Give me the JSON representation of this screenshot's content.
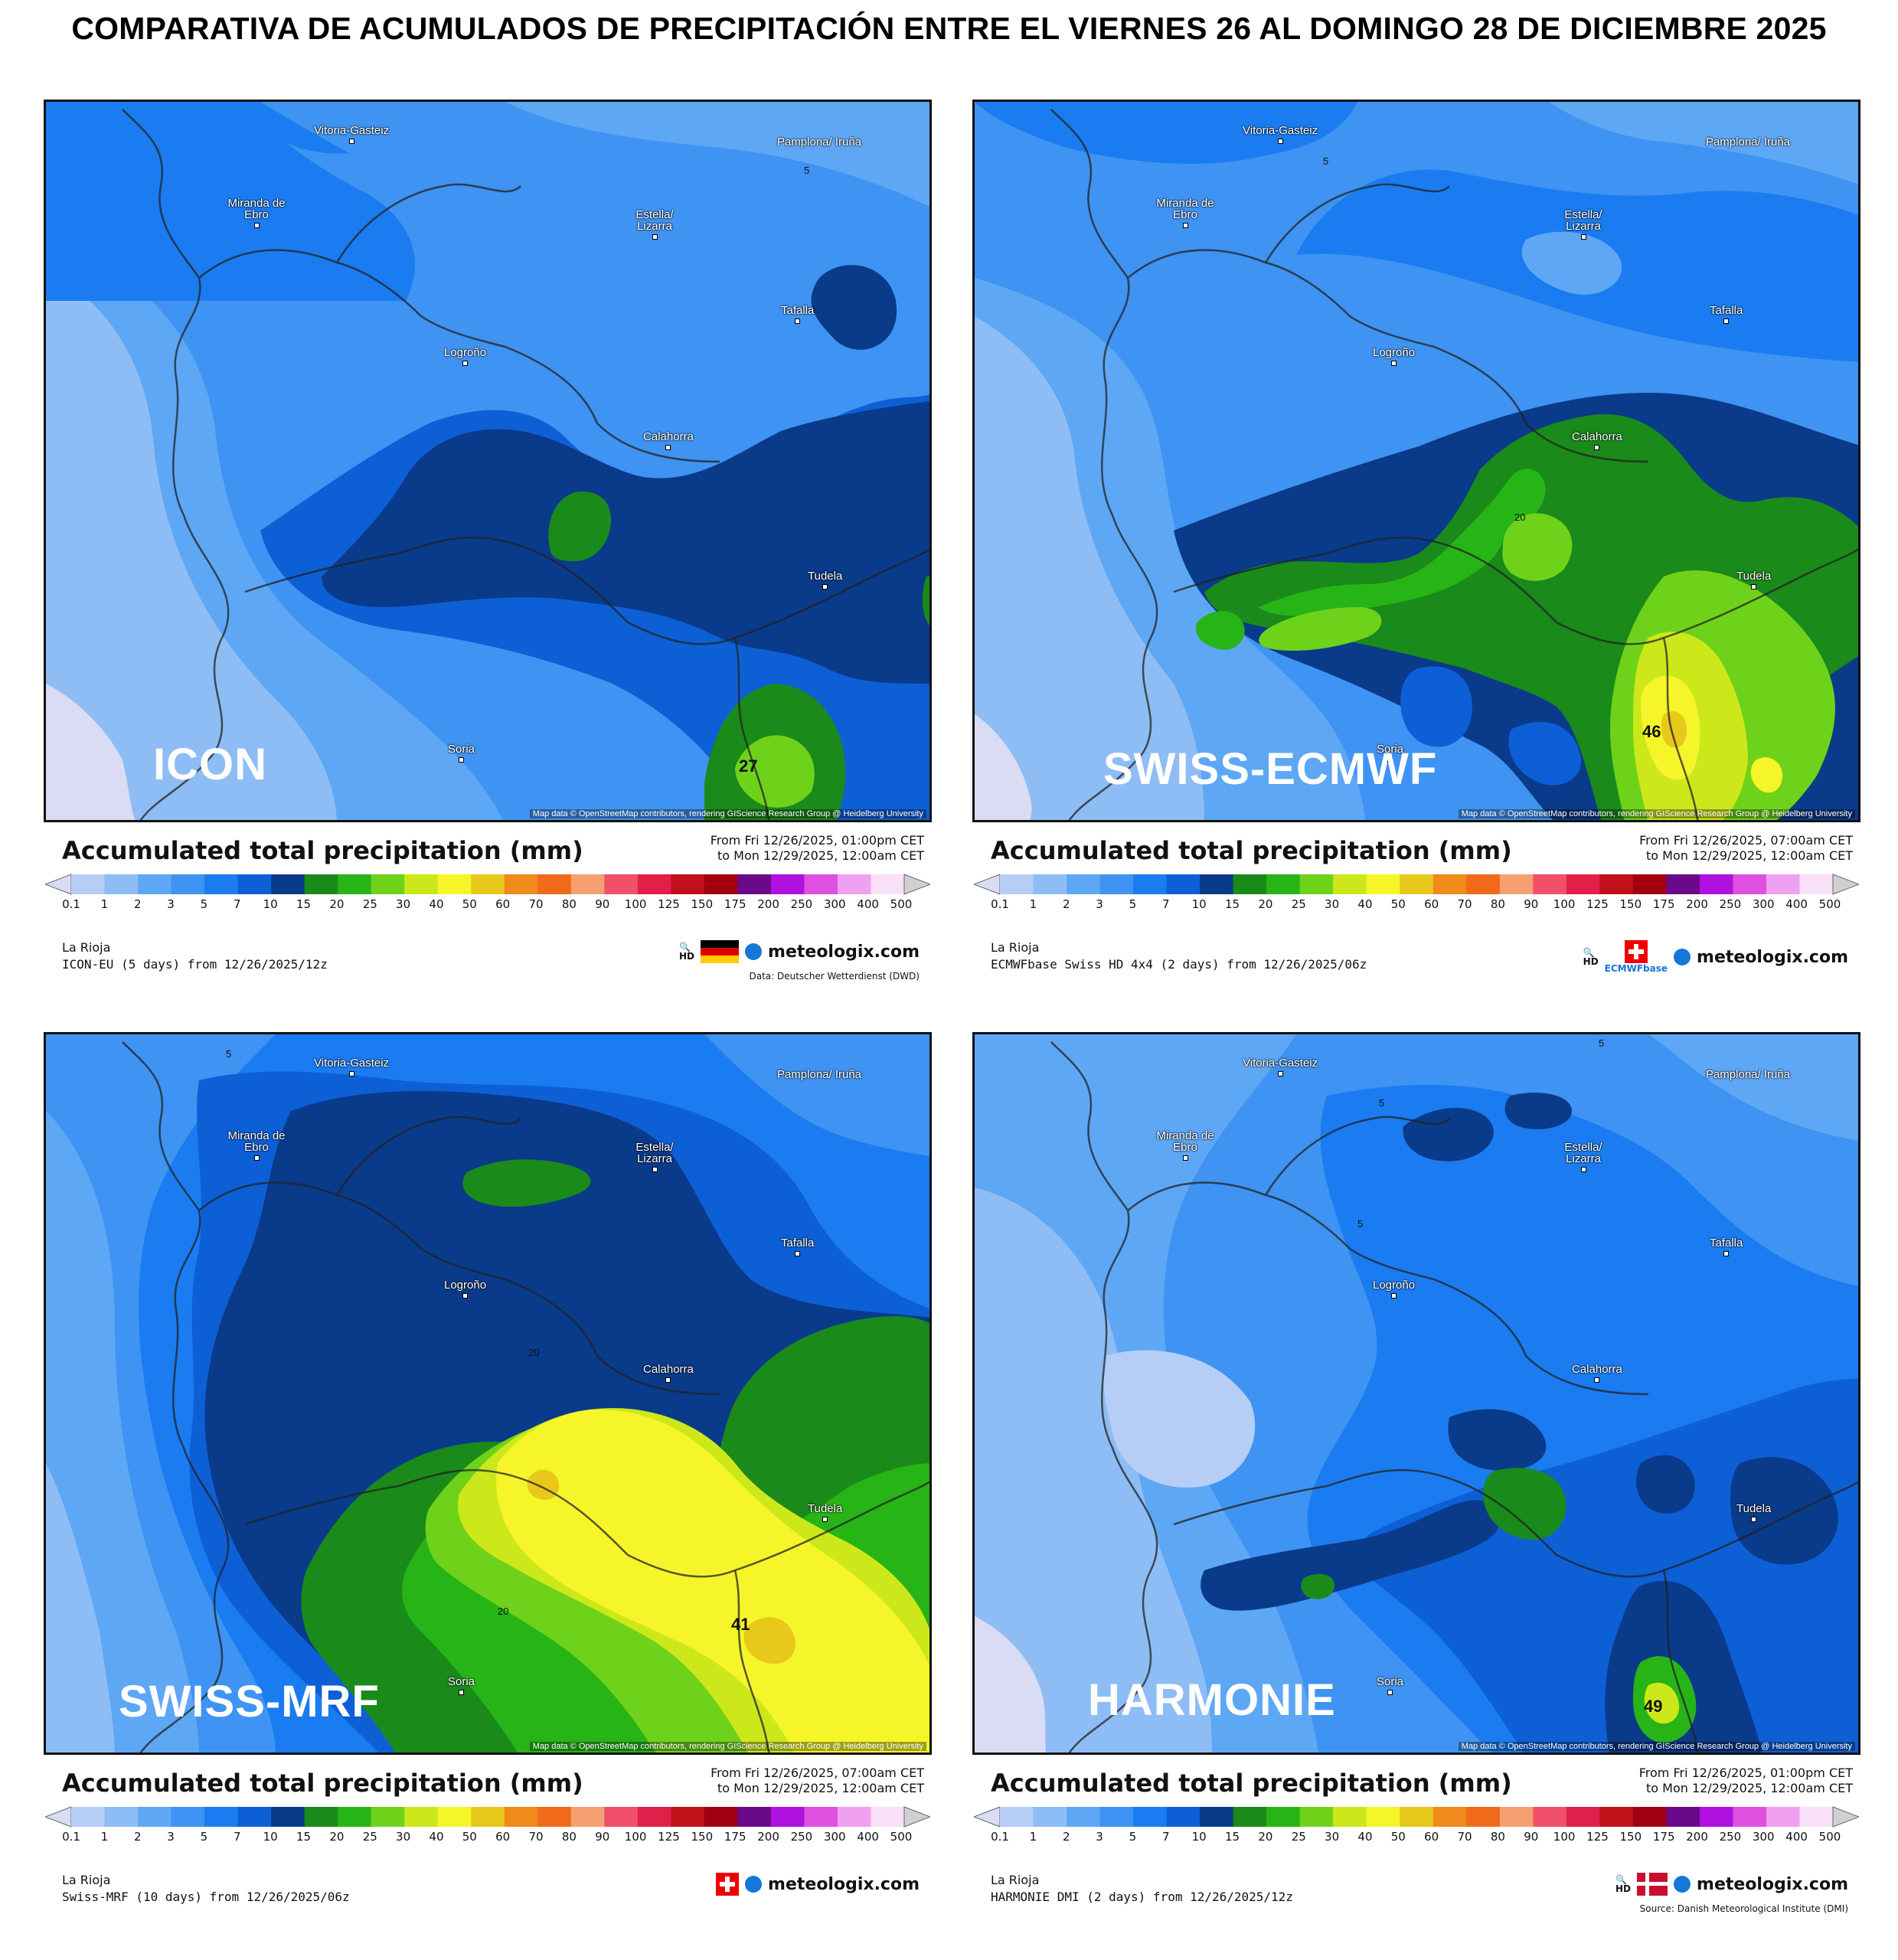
{
  "title": "COMPARATIVA DE ACUMULADOS DE PRECIPITACIÓN ENTRE EL VIERNES 26 AL DOMINGO 28 DE DICIEMBRE 2025",
  "cities": {
    "vitoria": "Vitoria-Gasteiz",
    "pamplona": "Pamplona/ Iruña",
    "miranda": "Miranda de Ebro",
    "estella": "Estella/ Lizarra",
    "tafalla": "Tafalla",
    "logrono": "Logroño",
    "calahorra": "Calahorra",
    "tudela": "Tudela",
    "soria": "Soria"
  },
  "attribution": "Map data © OpenStreetMap contributors, rendering GIScience Research Group @ Heidelberg University",
  "legend": {
    "title": "Accumulated total precipitation (mm)",
    "ticks": [
      "0.1",
      "1",
      "2",
      "3",
      "5",
      "7",
      "10",
      "15",
      "20",
      "25",
      "30",
      "40",
      "50",
      "60",
      "70",
      "80",
      "90",
      "100",
      "125",
      "150",
      "175",
      "200",
      "250",
      "300",
      "400",
      "500"
    ],
    "colors": [
      "#d9dcf3",
      "#b6cdf6",
      "#8ebdf5",
      "#5ea7f5",
      "#3f93f2",
      "#1a7cf0",
      "#0d5fd6",
      "#0a3a8a",
      "#1a8a1a",
      "#27b417",
      "#6fd21a",
      "#cde81a",
      "#f5f52a",
      "#e8c81a",
      "#f08a1a",
      "#f06a1a",
      "#f5a070",
      "#f0506a",
      "#e0204a",
      "#c0101a",
      "#a00010",
      "#6a0a8a",
      "#b010e0",
      "#e050e0",
      "#f0a0f0",
      "#f8e0f8",
      "#d0d0d0"
    ]
  },
  "panels": [
    {
      "label": "ICON",
      "date_from": "From Fri 12/26/2025, 01:00pm CET",
      "date_to": "to Mon 12/29/2025, 12:00am CET",
      "region": "La Rioja",
      "model_line": "ICON-EU (5 days) from 12/26/2025/12z",
      "brand": "meteologix.com",
      "source": "Data: Deutscher Wetterdienst (DWD)",
      "flag": "germany-flag",
      "max_value": "27",
      "contours": [
        "5"
      ]
    },
    {
      "label": "SWISS-ECMWF",
      "date_from": "From Fri 12/26/2025, 07:00am CET",
      "date_to": "to Mon 12/29/2025, 12:00am CET",
      "region": "La Rioja",
      "model_line": "ECMWFbase Swiss HD 4x4 (2 days) from 12/26/2025/06z",
      "brand": "meteologix.com",
      "source": "",
      "flag": "switzerland-flag",
      "badge": "ECMWFbase",
      "max_value": "46",
      "contours": [
        "5",
        "20"
      ]
    },
    {
      "label": "SWISS-MRF",
      "date_from": "From Fri 12/26/2025, 07:00am CET",
      "date_to": "to Mon 12/29/2025, 12:00am CET",
      "region": "La Rioja",
      "model_line": "Swiss-MRF (10 days) from 12/26/2025/06z",
      "brand": "meteologix.com",
      "source": "",
      "flag": "switzerland-flag",
      "max_value": "41",
      "contours": [
        "5",
        "20",
        "20"
      ]
    },
    {
      "label": "HARMONIE",
      "date_from": "From Fri 12/26/2025, 01:00pm CET",
      "date_to": "to Mon 12/29/2025, 12:00am CET",
      "region": "La Rioja",
      "model_line": "HARMONIE DMI (2 days) from 12/26/2025/12z",
      "brand": "meteologix.com",
      "source": "Source: Danish Meteorological Institute (DMI)",
      "flag": "denmark-flag",
      "max_value": "49",
      "contours": [
        "5",
        "5",
        "5"
      ]
    }
  ]
}
